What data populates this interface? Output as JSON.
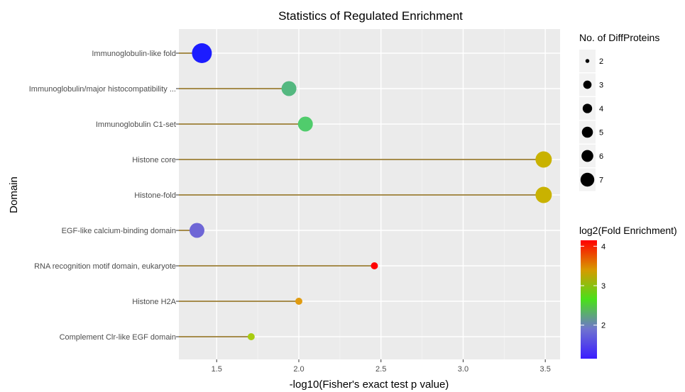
{
  "chart_data": {
    "type": "scatter",
    "title": "Statistics of Regulated Enrichment",
    "xlabel": "-log10(Fisher's exact test p value)",
    "ylabel": "Domain",
    "xlim": [
      1.27,
      3.59
    ],
    "xticks": [
      "1.5",
      "2.0",
      "2.5",
      "3.0",
      "3.5"
    ],
    "grid": true,
    "categories": [
      "Immunoglobulin-like fold",
      "Immunoglobulin/major histocompatibility ...",
      "Immunoglobulin C1-set",
      "Histone core",
      "Histone-fold",
      "EGF-like calcium-binding domain",
      "RNA recognition motif domain, eukaryote",
      "Histone H2A",
      "Complement Clr-like EGF domain"
    ],
    "points": [
      {
        "x": 1.41,
        "count": 7,
        "fold": 1.3,
        "color": "#1c1cff"
      },
      {
        "x": 1.94,
        "count": 5,
        "fold": 2.4,
        "color": "#54b880"
      },
      {
        "x": 2.04,
        "count": 5,
        "fold": 2.5,
        "color": "#50cc6c"
      },
      {
        "x": 3.49,
        "count": 6,
        "fold": 3.6,
        "color": "#c9b200"
      },
      {
        "x": 3.49,
        "count": 6,
        "fold": 3.6,
        "color": "#c9b200"
      },
      {
        "x": 1.38,
        "count": 5,
        "fold": 1.5,
        "color": "#6e66d6"
      },
      {
        "x": 2.46,
        "count": 2,
        "fold": 4.1,
        "color": "#ff0000"
      },
      {
        "x": 2.0,
        "count": 2,
        "fold": 3.8,
        "color": "#e09b10"
      },
      {
        "x": 1.71,
        "count": 2,
        "fold": 3.1,
        "color": "#a8cc10"
      }
    ],
    "size_legend": {
      "title": "No. of DiffProteins",
      "values": [
        "2",
        "3",
        "4",
        "5",
        "6",
        "7"
      ]
    },
    "color_legend": {
      "title": "log2(Fold Enrichment)",
      "ticks": [
        "4",
        "3",
        "2"
      ],
      "min": 1.15,
      "max": 4.15,
      "gradient": [
        "#ff0000",
        "#d79a00",
        "#49e01a",
        "#6f73cf",
        "#3a1cff"
      ]
    },
    "lollipop_color": "#8b6914",
    "panel_bg": "#ebebeb"
  }
}
